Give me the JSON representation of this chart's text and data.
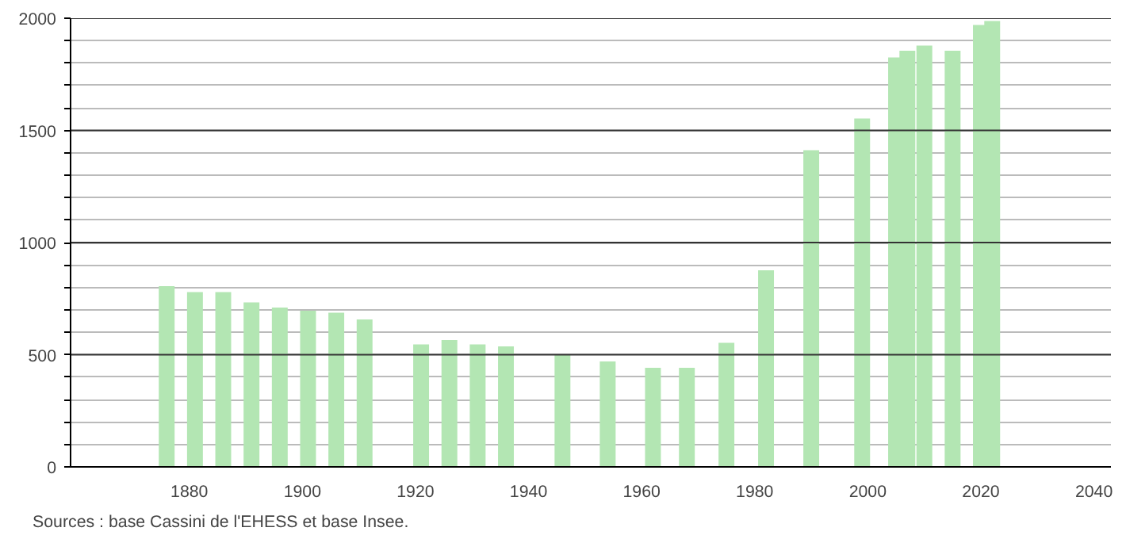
{
  "chart_data": {
    "type": "bar",
    "x": [
      1876,
      1881,
      1886,
      1891,
      1896,
      1901,
      1906,
      1911,
      1921,
      1926,
      1931,
      1936,
      1946,
      1954,
      1962,
      1968,
      1975,
      1982,
      1990,
      1999,
      2005,
      2007,
      2010,
      2015,
      2020,
      2022
    ],
    "values": [
      806,
      779,
      779,
      733,
      710,
      696,
      687,
      657,
      546,
      565,
      546,
      537,
      498,
      470,
      442,
      442,
      553,
      876,
      1412,
      1553,
      1825,
      1855,
      1878,
      1855,
      1970,
      1988
    ],
    "color": "#b3e6b3",
    "xlim": [
      1859,
      2043
    ],
    "xticks": [
      1880,
      1900,
      1920,
      1940,
      1960,
      1980,
      2000,
      2020,
      2040
    ],
    "ylim": [
      0,
      2000
    ],
    "yticks": [
      0,
      {
        "value": 100,
        "label": null
      },
      {
        "value": 200,
        "label": null
      },
      {
        "value": 300,
        "label": null
      },
      {
        "value": 400,
        "label": null
      },
      500,
      {
        "value": 600,
        "label": null
      },
      {
        "value": 700,
        "label": null
      },
      {
        "value": 800,
        "label": null
      },
      {
        "value": 900,
        "label": null
      },
      1000,
      {
        "value": 1100,
        "label": null
      },
      {
        "value": 1200,
        "label": null
      },
      {
        "value": 1300,
        "label": null
      },
      {
        "value": 1400,
        "label": null
      },
      1500,
      {
        "value": 1600,
        "label": null
      },
      {
        "value": 1700,
        "label": null
      },
      {
        "value": 1800,
        "label": null
      },
      {
        "value": 1900,
        "label": null
      },
      2000
    ],
    "grid": "y",
    "annotations": [
      "Sources : base Cassini de l'EHESS et base Insee."
    ]
  }
}
